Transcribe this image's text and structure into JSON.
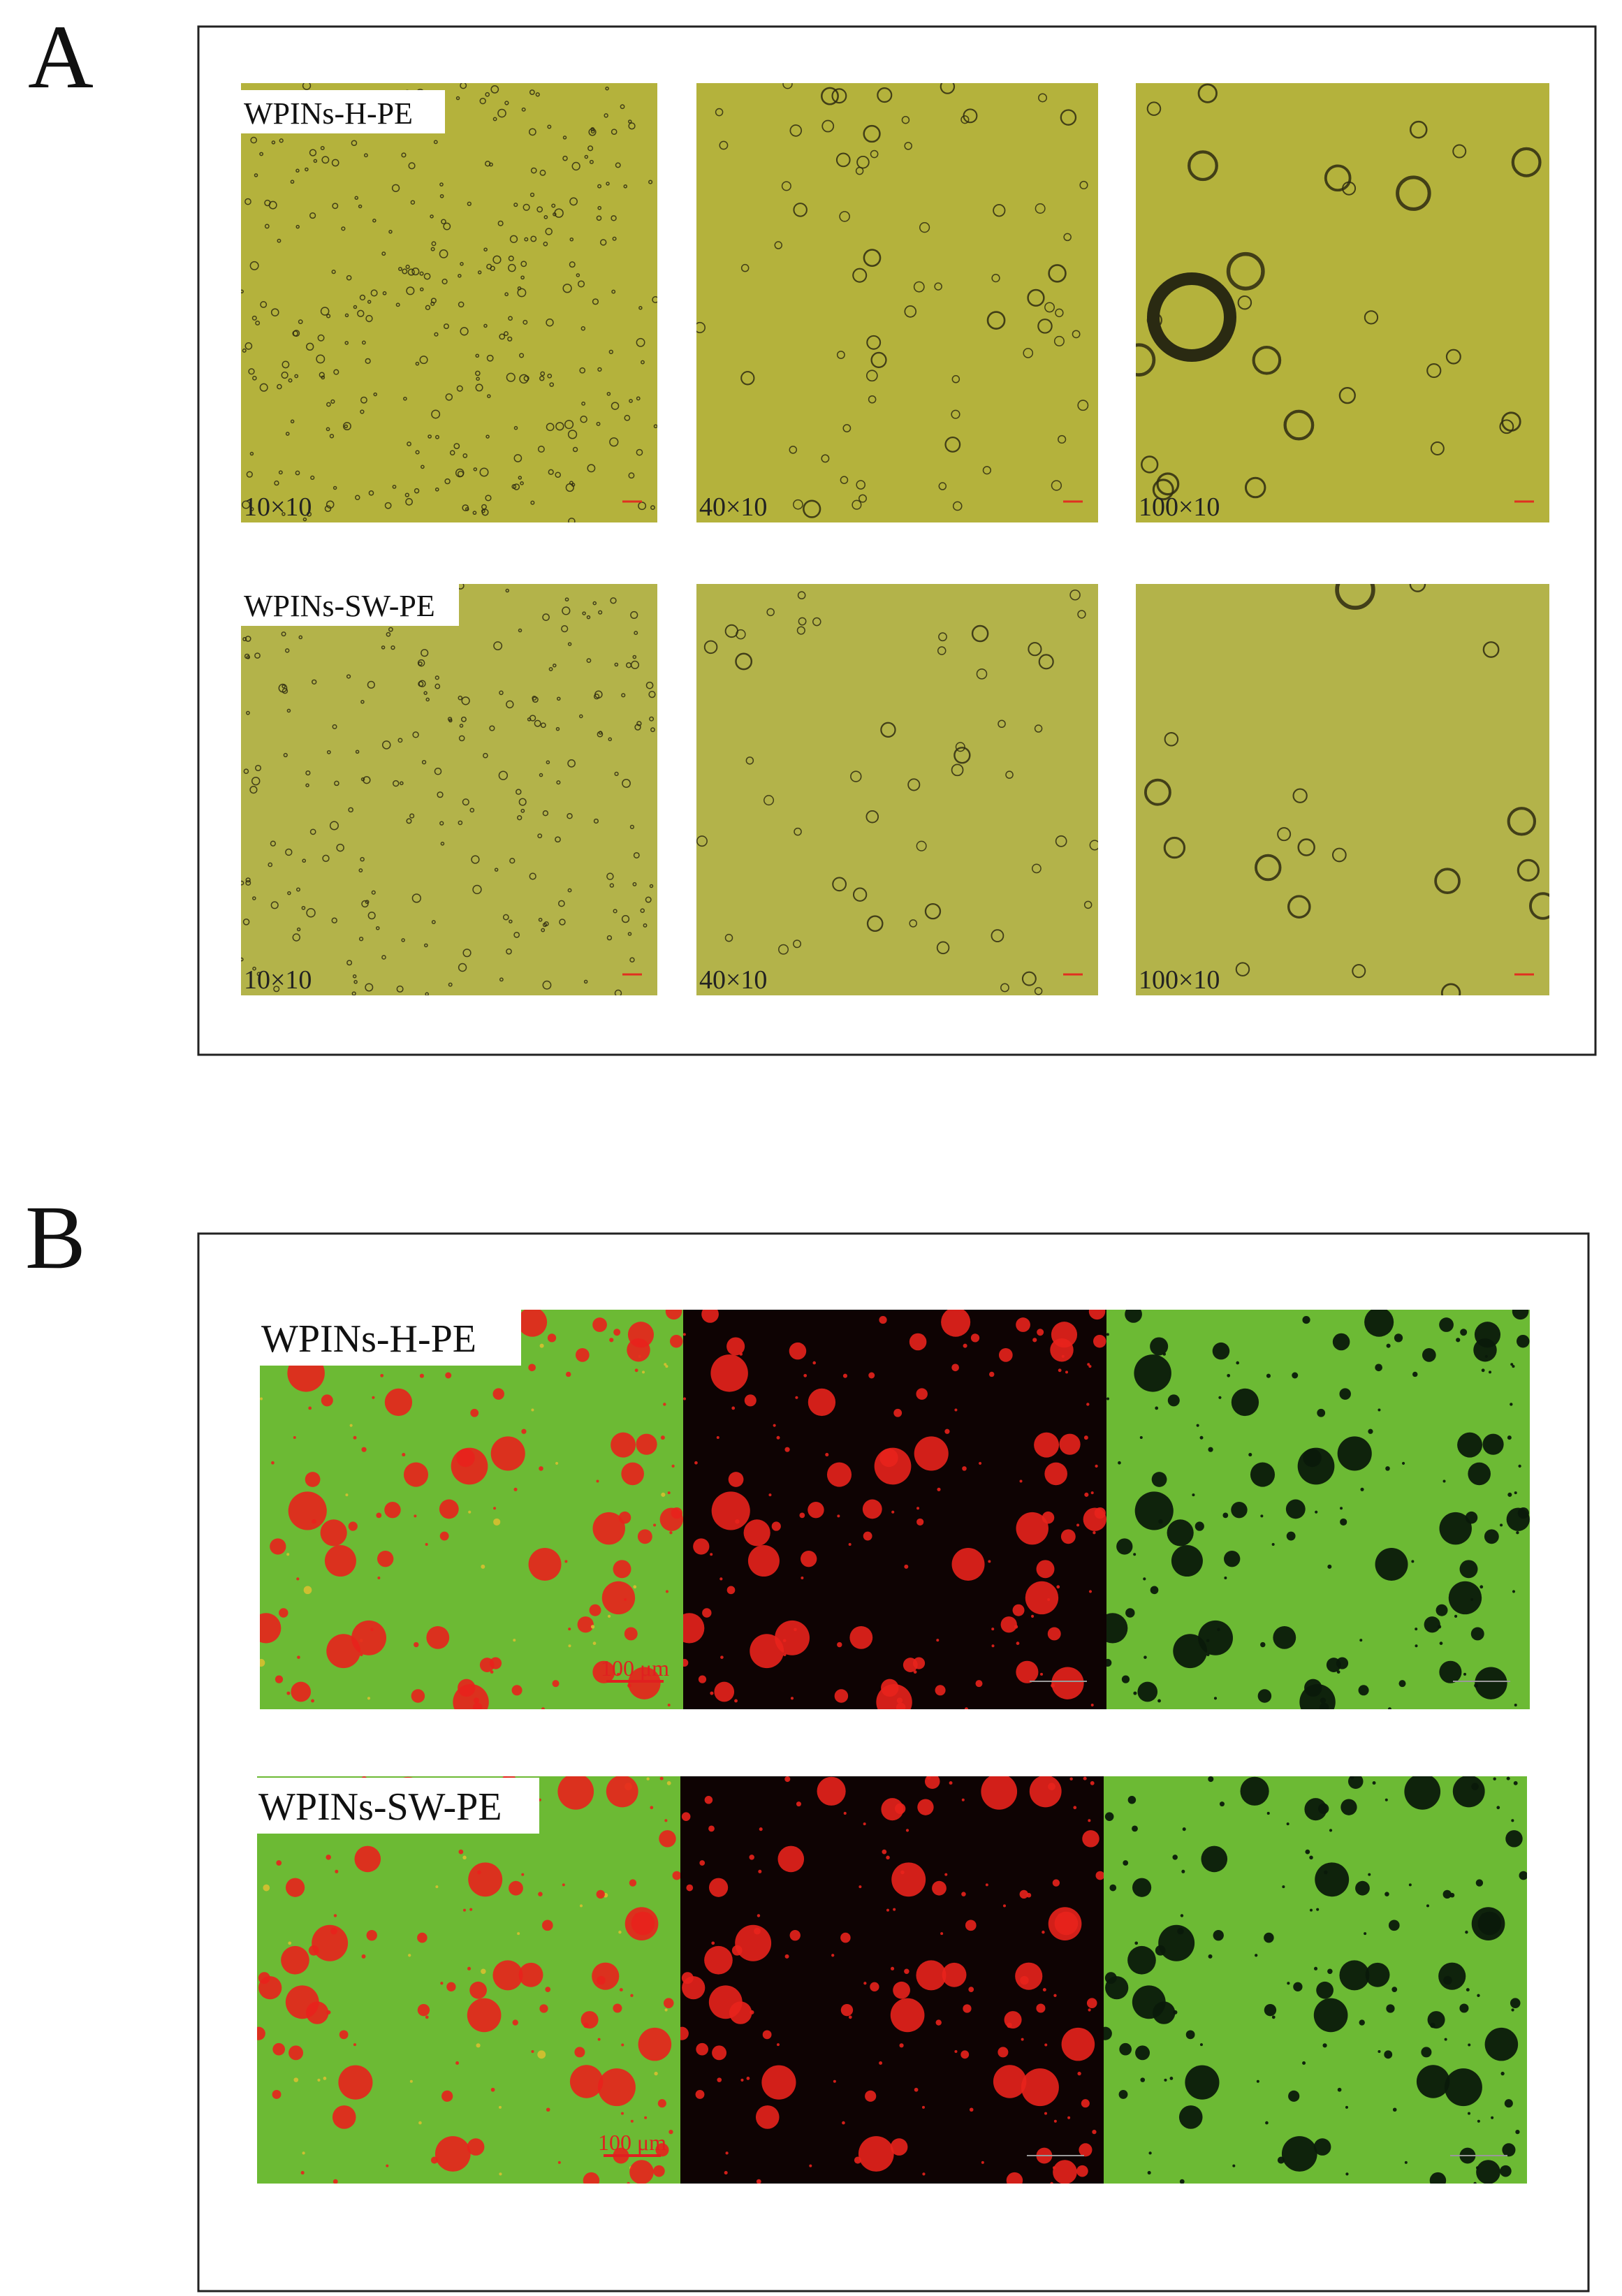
{
  "panels": [
    {
      "label": "A",
      "rows": [
        {
          "sample": "WPINs-H-PE",
          "magnifications": [
            "10×10",
            "40×10",
            "100×10"
          ]
        },
        {
          "sample": "WPINs-SW-PE",
          "magnifications": [
            "10×10",
            "40×10",
            "100×10"
          ]
        }
      ]
    },
    {
      "label": "B",
      "rows": [
        {
          "sample": "WPINs-H-PE",
          "scale_bar": "100 μm"
        },
        {
          "sample": "WPINs-SW-PE",
          "scale_bar": "100 μm"
        }
      ]
    }
  ]
}
